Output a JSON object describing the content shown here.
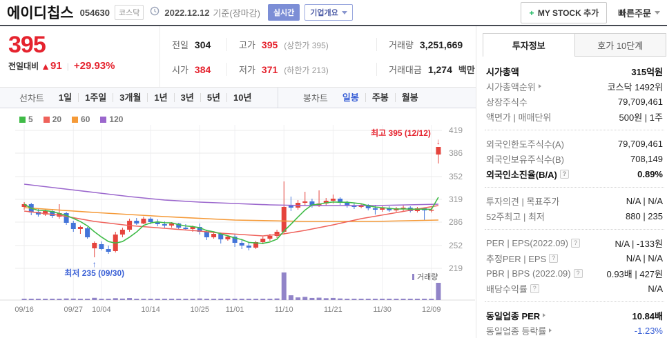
{
  "header": {
    "title": "에이디칩스",
    "code": "054630",
    "market_badge": "코스닥",
    "date": "2022.12.12",
    "date_suffix": "기준(장마감)",
    "realtime_badge": "실시간",
    "company_overview": "기업개요",
    "my_stock_label": "MY STOCK 추가",
    "quick_order": "빠른주문"
  },
  "icons": {
    "up_arrow": "▲",
    "help": "?",
    "plus": "+"
  },
  "price": {
    "current": "395",
    "change_label": "전일대비",
    "change_value": "91",
    "change_percent": "+29.93%"
  },
  "summary": {
    "prev_label": "전일",
    "prev": "304",
    "high_label": "고가",
    "high": "395",
    "high_note": "(상한가 395)",
    "volume_label": "거래량",
    "volume": "3,251,669",
    "open_label": "시가",
    "open": "384",
    "low_label": "저가",
    "low": "371",
    "low_note": "(하한가 213)",
    "value_label": "거래대금",
    "value": "1,274",
    "value_unit": "백만"
  },
  "chart_tabs": {
    "line_label": "선차트",
    "line_items": [
      "1일",
      "1주일",
      "3개월",
      "1년",
      "3년",
      "5년",
      "10년"
    ],
    "candle_label": "봉차트",
    "candle_items": [
      "일봉",
      "주봉",
      "월봉"
    ],
    "selected": "일봉"
  },
  "info_panel": {
    "tabs": [
      "투자정보",
      "호가 10단계"
    ],
    "active_tab": "투자정보",
    "groups": [
      {
        "rows": [
          {
            "label": "시가총액",
            "value": "315억원"
          },
          {
            "label": "시가총액순위",
            "value": "코스닥 1492위"
          },
          {
            "label": "상장주식수",
            "value": "79,709,461"
          },
          {
            "label": "액면가 | 매매단위",
            "value": "500원 | 1주"
          }
        ]
      },
      {
        "rows": [
          {
            "label": "외국인한도주식수(A)",
            "value": "79,709,461"
          },
          {
            "label": "외국인보유주식수(B)",
            "value": "708,149"
          },
          {
            "label": "외국인소진율(B/A)",
            "value": "0.89%"
          }
        ]
      },
      {
        "rows": [
          {
            "label": "투자의견 | 목표주가",
            "value": "N/A | N/A"
          },
          {
            "label": "52주최고 | 최저",
            "value": "880 | 235"
          }
        ]
      },
      {
        "rows": [
          {
            "label": "PER | EPS(2022.09)",
            "value": "N/A | -133원"
          },
          {
            "label": "추정PER | EPS",
            "value": "N/A | N/A"
          },
          {
            "label": "PBR | BPS (2022.09)",
            "value": "0.93배 | 427원"
          },
          {
            "label": "배당수익률",
            "value": "N/A"
          }
        ]
      },
      {
        "rows": [
          {
            "label": "동일업종 PER",
            "value": "10.84배"
          },
          {
            "label": "동일업종 등락률",
            "value": "-1.23%"
          }
        ]
      }
    ]
  },
  "chart_data": {
    "type": "candlestick",
    "title": "에이디칩스 일봉 차트",
    "y_ticks": [
      419,
      386,
      352,
      319,
      286,
      252,
      219
    ],
    "x_ticks": [
      {
        "i": 0,
        "label": "09/16"
      },
      {
        "i": 7,
        "label": "09/27"
      },
      {
        "i": 11,
        "label": "10/04"
      },
      {
        "i": 18,
        "label": "10/14"
      },
      {
        "i": 25,
        "label": "10/25"
      },
      {
        "i": 30,
        "label": "11/01"
      },
      {
        "i": 37,
        "label": "11/10"
      },
      {
        "i": 44,
        "label": "11/21"
      },
      {
        "i": 51,
        "label": "11/30"
      },
      {
        "i": 58,
        "label": "12/09"
      }
    ],
    "legend": [
      {
        "label": "5",
        "color": "#3fbb47"
      },
      {
        "label": "20",
        "color": "#ef625b"
      },
      {
        "label": "60",
        "color": "#f59a38"
      },
      {
        "label": "120",
        "color": "#9b67cd"
      }
    ],
    "up_color": "#e5443d",
    "down_color": "#4374d9",
    "volume_color": "#9184c8",
    "volume_legend": "거래량",
    "candles": [
      [
        308,
        315,
        304,
        312,
        150
      ],
      [
        312,
        314,
        296,
        300,
        220
      ],
      [
        301,
        306,
        294,
        297,
        160
      ],
      [
        297,
        304,
        295,
        302,
        140
      ],
      [
        302,
        305,
        292,
        295,
        170
      ],
      [
        294,
        312,
        291,
        299,
        260
      ],
      [
        299,
        301,
        282,
        285,
        300
      ],
      [
        285,
        288,
        272,
        276,
        280
      ],
      [
        276,
        281,
        269,
        279,
        190
      ],
      [
        277,
        279,
        262,
        264,
        240
      ],
      [
        248,
        258,
        235,
        256,
        420
      ],
      [
        254,
        258,
        245,
        247,
        260
      ],
      [
        247,
        252,
        240,
        243,
        200
      ],
      [
        244,
        272,
        242,
        268,
        350
      ],
      [
        268,
        278,
        264,
        275,
        280
      ],
      [
        275,
        291,
        272,
        288,
        380
      ],
      [
        288,
        292,
        282,
        284,
        220
      ],
      [
        284,
        294,
        283,
        291,
        240
      ],
      [
        291,
        293,
        283,
        286,
        180
      ],
      [
        286,
        290,
        280,
        283,
        150
      ],
      [
        283,
        287,
        278,
        281,
        140
      ],
      [
        281,
        286,
        278,
        284,
        130
      ],
      [
        284,
        285,
        276,
        278,
        150
      ],
      [
        278,
        283,
        274,
        276,
        140
      ],
      [
        276,
        281,
        272,
        279,
        120
      ],
      [
        279,
        284,
        268,
        272,
        300
      ],
      [
        272,
        275,
        260,
        264,
        260
      ],
      [
        264,
        271,
        262,
        269,
        180
      ],
      [
        269,
        271,
        255,
        261,
        220
      ],
      [
        261,
        267,
        259,
        265,
        160
      ],
      [
        265,
        268,
        250,
        256,
        220
      ],
      [
        256,
        261,
        247,
        252,
        240
      ],
      [
        252,
        257,
        245,
        249,
        200
      ],
      [
        249,
        259,
        247,
        257,
        230
      ],
      [
        257,
        265,
        254,
        262,
        250
      ],
      [
        262,
        269,
        259,
        266,
        260
      ],
      [
        266,
        275,
        263,
        272,
        300
      ],
      [
        272,
        345,
        268,
        308,
        5200
      ],
      [
        310,
        323,
        302,
        307,
        900
      ],
      [
        307,
        318,
        304,
        314,
        500
      ],
      [
        314,
        330,
        310,
        316,
        600
      ],
      [
        316,
        320,
        307,
        310,
        400
      ],
      [
        310,
        332,
        308,
        313,
        450
      ],
      [
        313,
        321,
        310,
        317,
        350
      ],
      [
        317,
        326,
        313,
        320,
        400
      ],
      [
        320,
        322,
        311,
        314,
        300
      ],
      [
        314,
        317,
        307,
        310,
        250
      ],
      [
        310,
        314,
        305,
        308,
        220
      ],
      [
        308,
        313,
        306,
        311,
        200
      ],
      [
        311,
        312,
        303,
        306,
        180
      ],
      [
        306,
        311,
        297,
        304,
        200
      ],
      [
        304,
        309,
        301,
        306,
        190
      ],
      [
        306,
        309,
        301,
        303,
        160
      ],
      [
        303,
        308,
        301,
        306,
        140
      ],
      [
        305,
        310,
        302,
        307,
        150
      ],
      [
        307,
        309,
        300,
        302,
        160
      ],
      [
        302,
        308,
        300,
        306,
        140
      ],
      [
        306,
        307,
        288,
        303,
        250
      ],
      [
        303,
        307,
        300,
        304,
        180
      ],
      [
        384,
        395,
        371,
        395,
        3252
      ]
    ],
    "ma20": [
      [
        0,
        302
      ],
      [
        5,
        296
      ],
      [
        10,
        287
      ],
      [
        15,
        281
      ],
      [
        20,
        277
      ],
      [
        25,
        273
      ],
      [
        28,
        270
      ],
      [
        31,
        268
      ],
      [
        34,
        266
      ],
      [
        37,
        269
      ],
      [
        40,
        274
      ],
      [
        44,
        282
      ],
      [
        48,
        291
      ],
      [
        52,
        298
      ],
      [
        56,
        305
      ],
      [
        59,
        310
      ]
    ],
    "ma60": [
      [
        0,
        307
      ],
      [
        10,
        300
      ],
      [
        20,
        294
      ],
      [
        30,
        289
      ],
      [
        40,
        287
      ],
      [
        50,
        287
      ],
      [
        59,
        289
      ]
    ],
    "ma120": [
      [
        0,
        341
      ],
      [
        5,
        335
      ],
      [
        10,
        329
      ],
      [
        15,
        323
      ],
      [
        20,
        318
      ],
      [
        25,
        315
      ],
      [
        30,
        313
      ],
      [
        35,
        311
      ],
      [
        40,
        310
      ],
      [
        50,
        310
      ],
      [
        59,
        312
      ]
    ],
    "annotations": {
      "high": {
        "text": "최고 395 (12/12)",
        "arrow": "↓",
        "index": 59,
        "value": 395,
        "color": "#e5232e"
      },
      "low": {
        "text": "최저 235 (09/30)",
        "arrow": "↑",
        "index": 10,
        "value": 235,
        "color": "#3b61d6"
      }
    }
  }
}
